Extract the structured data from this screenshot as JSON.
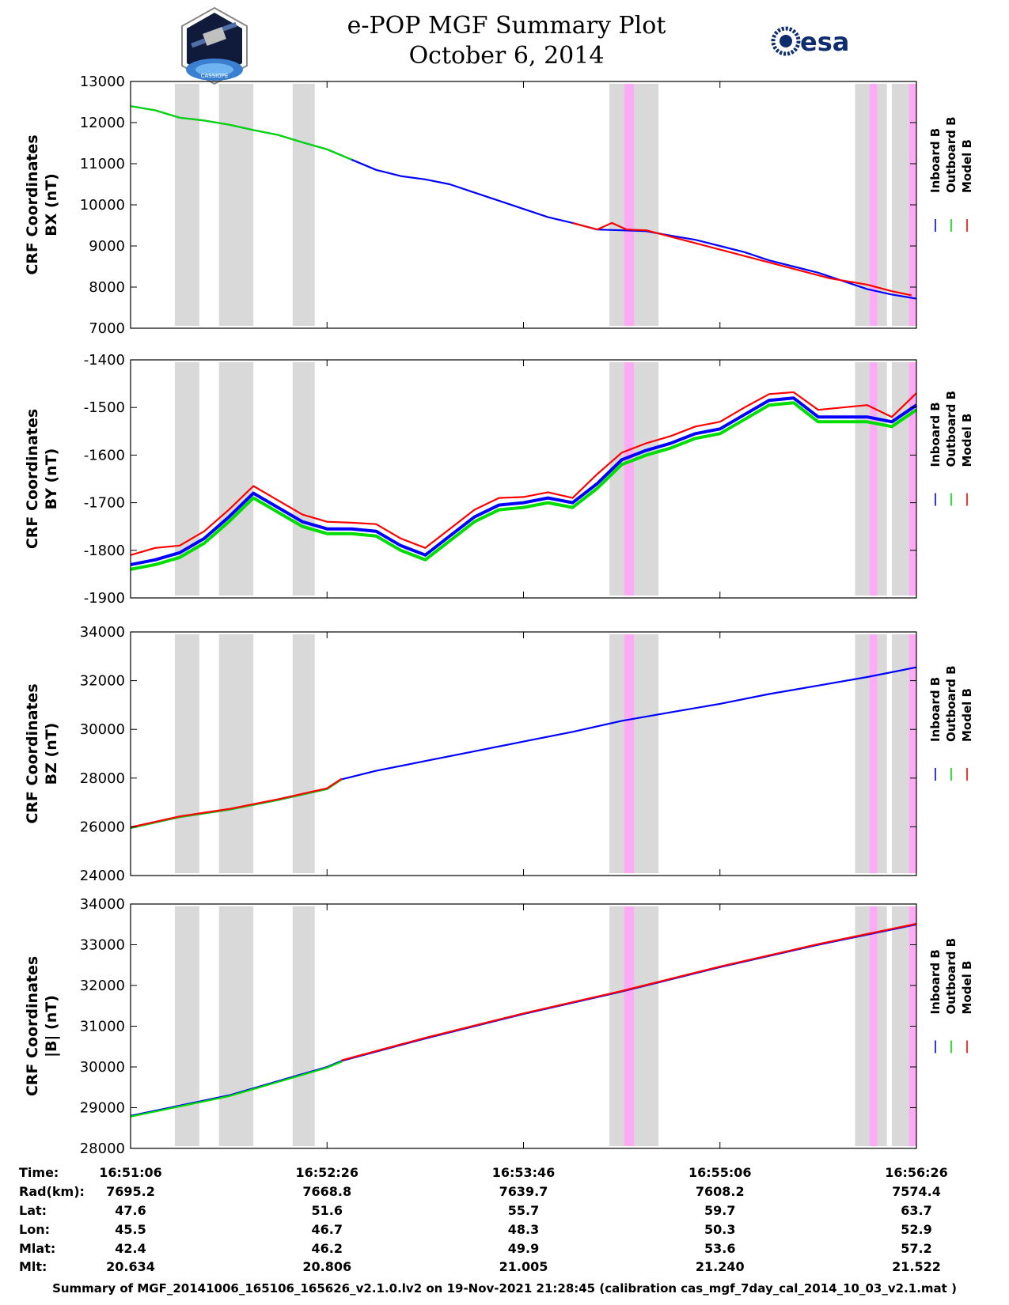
{
  "header": {
    "title_line1": "e-POP MGF Summary Plot",
    "title_line2": "October 6, 2014",
    "logo_left_text": "CASSIOPE",
    "logo_right_text": "esa"
  },
  "colors": {
    "inboard": "#0000ff",
    "outboard": "#00dd00",
    "model": "#ff0000",
    "gray_band": "#d9d9d9",
    "pink_band": "#ffaaf6"
  },
  "chart_data": [
    {
      "type": "line",
      "id": "bx",
      "ylabel_line1": "CRF Coordinates",
      "ylabel_line2": "BX (nT)",
      "ylim": [
        7000,
        13000
      ],
      "yticks": [
        7000,
        8000,
        9000,
        10000,
        11000,
        12000,
        13000
      ],
      "xlim": [
        0,
        320
      ],
      "series": [
        {
          "name": "Inboard B",
          "color": "#0000ff",
          "x": [
            0,
            10,
            20,
            30,
            40,
            50,
            60,
            70,
            80,
            90,
            100,
            110,
            120,
            130,
            140,
            150,
            160,
            170,
            180,
            190,
            200,
            210,
            220,
            230,
            240,
            250,
            260,
            270,
            280,
            290,
            300,
            310,
            320
          ],
          "y": [
            12400,
            12300,
            12120,
            12050,
            11950,
            11820,
            11700,
            11520,
            11350,
            11100,
            10850,
            10700,
            10620,
            10500,
            10300,
            10100,
            9900,
            9700,
            9560,
            9400,
            9380,
            9360,
            9250,
            9150,
            9000,
            8850,
            8650,
            8500,
            8350,
            8150,
            7950,
            7820,
            7720
          ]
        },
        {
          "name": "Outboard B",
          "color": "#00dd00",
          "x": [
            0,
            10,
            20,
            30,
            40,
            50,
            60,
            70,
            80,
            90
          ],
          "y": [
            12400,
            12300,
            12120,
            12050,
            11950,
            11820,
            11700,
            11520,
            11350,
            11100
          ]
        },
        {
          "name": "Model B",
          "color": "#ff0000",
          "x": [
            180,
            190,
            196,
            202,
            210,
            285,
            300,
            310,
            318
          ],
          "y": [
            9560,
            9400,
            9560,
            9400,
            9380,
            8210,
            8060,
            7900,
            7800
          ]
        }
      ]
    },
    {
      "type": "line",
      "id": "by",
      "ylabel_line1": "CRF Coordinates",
      "ylabel_line2": "BY (nT)",
      "ylim": [
        -1900,
        -1400
      ],
      "yticks": [
        -1900,
        -1800,
        -1700,
        -1600,
        -1500,
        -1400
      ],
      "xlim": [
        0,
        320
      ],
      "series": [
        {
          "name": "Inboard B",
          "color": "#0000ff",
          "x": [
            0,
            10,
            20,
            30,
            40,
            50,
            60,
            70,
            80,
            90,
            100,
            110,
            120,
            130,
            140,
            150,
            160,
            170,
            180,
            190,
            200,
            210,
            220,
            230,
            240,
            250,
            260,
            270,
            280,
            290,
            300,
            310,
            320
          ],
          "y": [
            -1830,
            -1820,
            -1805,
            -1775,
            -1730,
            -1680,
            -1710,
            -1740,
            -1755,
            -1755,
            -1760,
            -1790,
            -1810,
            -1770,
            -1730,
            -1705,
            -1700,
            -1690,
            -1700,
            -1660,
            -1610,
            -1590,
            -1575,
            -1555,
            -1545,
            -1515,
            -1485,
            -1480,
            -1520,
            -1520,
            -1520,
            -1530,
            -1495
          ]
        },
        {
          "name": "Outboard B",
          "color": "#00dd00",
          "x": [
            0,
            10,
            20,
            30,
            40,
            50,
            60,
            70,
            80,
            90,
            100,
            110,
            120,
            130,
            140,
            150,
            160,
            170,
            180,
            190,
            200,
            210,
            220,
            230,
            240,
            250,
            260,
            270,
            280,
            290,
            300,
            310,
            320
          ],
          "y": [
            -1840,
            -1830,
            -1815,
            -1785,
            -1740,
            -1690,
            -1720,
            -1750,
            -1765,
            -1765,
            -1770,
            -1800,
            -1820,
            -1780,
            -1740,
            -1715,
            -1710,
            -1700,
            -1710,
            -1670,
            -1620,
            -1600,
            -1585,
            -1565,
            -1555,
            -1525,
            -1495,
            -1490,
            -1530,
            -1530,
            -1530,
            -1540,
            -1505
          ]
        },
        {
          "name": "Model B",
          "color": "#ff0000",
          "x": [
            0,
            10,
            20,
            30,
            40,
            50,
            60,
            70,
            80,
            90,
            100,
            110,
            120,
            130,
            140,
            150,
            160,
            170,
            180,
            190,
            200,
            210,
            220,
            230,
            240,
            250,
            260,
            270,
            280,
            290,
            300,
            310,
            320
          ],
          "y": [
            -1810,
            -1795,
            -1790,
            -1760,
            -1715,
            -1665,
            -1695,
            -1725,
            -1740,
            -1742,
            -1745,
            -1775,
            -1795,
            -1755,
            -1715,
            -1690,
            -1688,
            -1678,
            -1690,
            -1640,
            -1595,
            -1575,
            -1560,
            -1540,
            -1530,
            -1500,
            -1472,
            -1468,
            -1505,
            -1500,
            -1495,
            -1520,
            -1470
          ]
        }
      ]
    },
    {
      "type": "line",
      "id": "bz",
      "ylabel_line1": "CRF Coordinates",
      "ylabel_line2": "BZ (nT)",
      "ylim": [
        24000,
        34000
      ],
      "yticks": [
        24000,
        26000,
        28000,
        30000,
        32000,
        34000
      ],
      "xlim": [
        0,
        320
      ],
      "series": [
        {
          "name": "Inboard B",
          "color": "#0000ff",
          "x": [
            0,
            20,
            40,
            60,
            80,
            86,
            100,
            120,
            140,
            160,
            180,
            200,
            220,
            240,
            260,
            280,
            300,
            320
          ],
          "y": [
            25950,
            26400,
            26700,
            27100,
            27550,
            27950,
            28300,
            28700,
            29100,
            29500,
            29900,
            30350,
            30700,
            31050,
            31450,
            31800,
            32150,
            32550
          ]
        },
        {
          "name": "Outboard B",
          "color": "#00dd00",
          "x": [
            0,
            20,
            40,
            60,
            80,
            86
          ],
          "y": [
            25950,
            26400,
            26700,
            27100,
            27550,
            27950
          ]
        },
        {
          "name": "Model B",
          "color": "#ff0000",
          "x": [
            0,
            20,
            40,
            60,
            80,
            86
          ],
          "y": [
            25980,
            26430,
            26730,
            27130,
            27580,
            27980
          ]
        }
      ]
    },
    {
      "type": "line",
      "id": "bmag",
      "ylabel_line1": "CRF Coordinates",
      "ylabel_line2": "|B| (nT)",
      "ylim": [
        28000,
        34000
      ],
      "yticks": [
        28000,
        29000,
        30000,
        31000,
        32000,
        33000,
        34000
      ],
      "xlim": [
        0,
        320
      ],
      "series": [
        {
          "name": "Inboard B",
          "color": "#0000ff",
          "x": [
            0,
            40,
            80,
            86,
            120,
            160,
            200,
            240,
            280,
            320
          ],
          "y": [
            28800,
            29300,
            30000,
            30150,
            30700,
            31300,
            31850,
            32450,
            33000,
            33500
          ]
        },
        {
          "name": "Outboard B",
          "color": "#00dd00",
          "x": [
            0,
            40,
            80,
            86
          ],
          "y": [
            28780,
            29280,
            29980,
            30130
          ]
        },
        {
          "name": "Model B",
          "color": "#ff0000",
          "x": [
            86,
            120,
            160,
            200,
            240,
            280,
            320
          ],
          "y": [
            30165,
            30715,
            31315,
            31865,
            32465,
            33015,
            33515
          ]
        }
      ]
    }
  ],
  "bands": {
    "gray": [
      [
        18,
        28
      ],
      [
        36,
        50
      ],
      [
        66,
        75
      ],
      [
        195,
        215
      ],
      [
        295,
        308
      ],
      [
        310,
        320
      ]
    ],
    "pink": [
      [
        201,
        205
      ],
      [
        301,
        304
      ],
      [
        317,
        320
      ]
    ]
  },
  "x_ticks": [
    0,
    80,
    160,
    240,
    320
  ],
  "legend": {
    "labels": [
      "Inboard B",
      "Outboard B",
      "Model B"
    ]
  },
  "info_table": {
    "row_labels": [
      "Time:",
      "Rad(km):",
      "Lat:",
      "Lon:",
      "Mlat:",
      "Mlt:"
    ],
    "columns": [
      [
        "16:51:06",
        "7695.2",
        "47.6",
        "45.5",
        "42.4",
        "20.634"
      ],
      [
        "16:52:26",
        "7668.8",
        "51.6",
        "46.7",
        "46.2",
        "20.806"
      ],
      [
        "16:53:46",
        "7639.7",
        "55.7",
        "48.3",
        "49.9",
        "21.005"
      ],
      [
        "16:55:06",
        "7608.2",
        "59.7",
        "50.3",
        "53.6",
        "21.240"
      ],
      [
        "16:56:26",
        "7574.4",
        "63.7",
        "52.9",
        "57.2",
        "21.522"
      ]
    ]
  },
  "footer": {
    "text": "Summary of MGF_20141006_165106_165626_v2.1.0.lv2 on 19-Nov-2021 21:28:45 (calibration cas_mgf_7day_cal_2014_10_03_v2.1.mat )"
  }
}
